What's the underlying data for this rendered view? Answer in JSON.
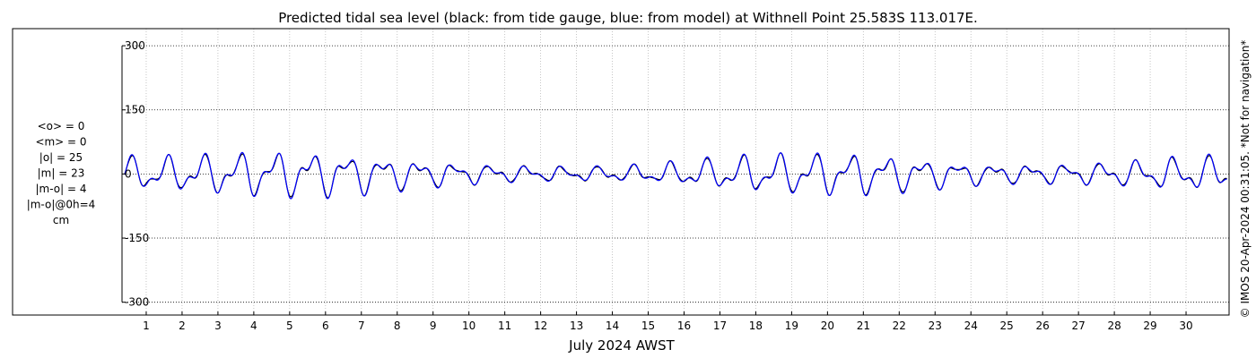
{
  "chart_data": {
    "type": "line",
    "title": "Predicted tidal sea level (black: from tide gauge, blue: from model) at Withnell Point 25.583S 113.017E.",
    "xlabel": "July 2024 AWST",
    "ylabel": "",
    "units": "cm",
    "ylim": [
      -330,
      340
    ],
    "yticks": [
      -300,
      -150,
      0,
      150,
      300
    ],
    "ytick_labels": [
      "-300",
      "-150",
      "0",
      "150",
      "300"
    ],
    "xlim": [
      0.35,
      31.2
    ],
    "xticks": [
      1,
      2,
      3,
      4,
      5,
      6,
      7,
      8,
      9,
      10,
      11,
      12,
      13,
      14,
      15,
      16,
      17,
      18,
      19,
      20,
      21,
      22,
      23,
      24,
      25,
      26,
      27,
      28,
      29,
      30
    ],
    "xtick_labels": [
      "1",
      "2",
      "3",
      "4",
      "5",
      "6",
      "7",
      "8",
      "9",
      "10",
      "11",
      "12",
      "13",
      "14",
      "15",
      "16",
      "17",
      "18",
      "19",
      "20",
      "21",
      "22",
      "23",
      "24",
      "25",
      "26",
      "27",
      "28",
      "29",
      "30"
    ],
    "grid": true,
    "stats": [
      "<o> = 0",
      "<m> = 0",
      "|o| = 25",
      "|m| = 23",
      "|m-o| = 4",
      "|m-o|@0h=4",
      "cm"
    ],
    "copyright": "© IMOS 20-Apr-2024 00:31:05. *Not for navigation*",
    "x_start_day": 0.4,
    "x_end_day": 31.15,
    "amplitude_envelope": {
      "days": [
        0.5,
        1.0,
        2.0,
        3.0,
        4.0,
        5.0,
        6.0,
        7.0,
        8.0,
        9.0,
        10.0,
        11.0,
        12.0,
        13.0,
        14.0,
        15.0,
        16.0,
        17.0,
        18.0,
        19.0,
        20.0,
        21.0,
        22.0,
        23.0,
        24.0,
        25.0,
        26.0,
        27.0,
        28.0,
        29.0,
        30.0,
        31.0
      ],
      "amplitude_cm": [
        40,
        40,
        42,
        48,
        52,
        54,
        52,
        46,
        38,
        30,
        24,
        20,
        18,
        17,
        18,
        22,
        30,
        38,
        44,
        48,
        50,
        48,
        42,
        34,
        26,
        22,
        22,
        24,
        28,
        34,
        40,
        42
      ]
    },
    "series": [
      {
        "name": "tide gauge",
        "color": "#000000"
      },
      {
        "name": "model",
        "color": "#0000ff"
      }
    ]
  }
}
